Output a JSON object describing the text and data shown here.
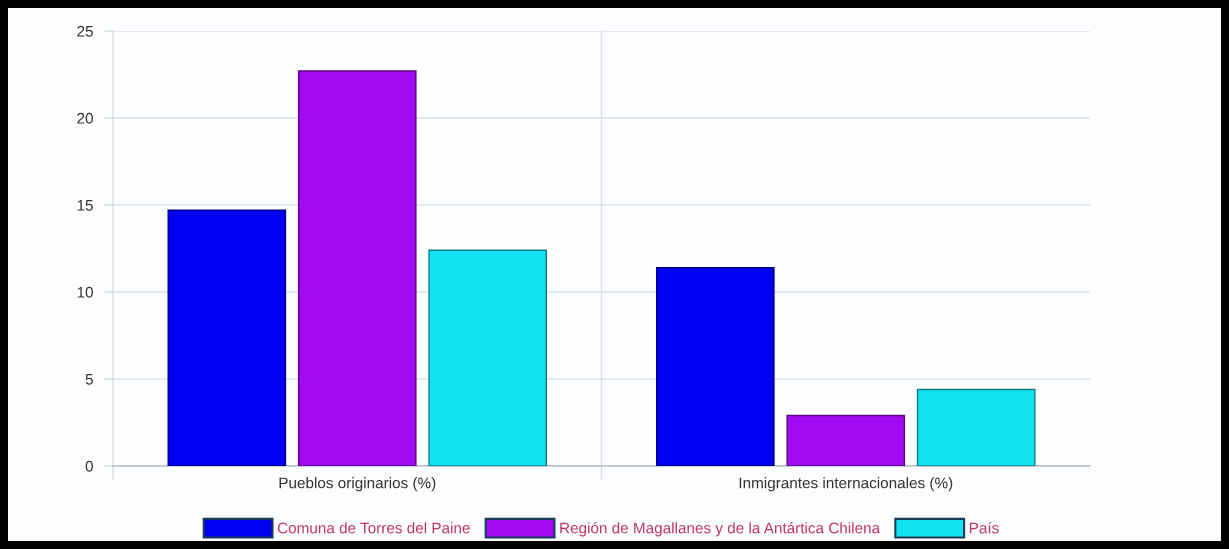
{
  "chart_data": {
    "type": "bar",
    "categories": [
      "Pueblos originarios (%)",
      "Inmigrantes internacionales (%)"
    ],
    "series": [
      {
        "name": "Comuna de Torres del Paine",
        "color": "#0000f0",
        "values": [
          14.7,
          11.4
        ]
      },
      {
        "name": "Región de Magallanes y de la Antártica Chilena",
        "color": "#a20af2",
        "values": [
          22.7,
          2.9
        ]
      },
      {
        "name": "País",
        "color": "#12e3f0",
        "values": [
          12.4,
          4.4
        ]
      }
    ],
    "ylim": [
      0,
      25
    ],
    "yticks": [
      0,
      5,
      10,
      15,
      20,
      25
    ],
    "grid": true,
    "legend": "bottom"
  }
}
